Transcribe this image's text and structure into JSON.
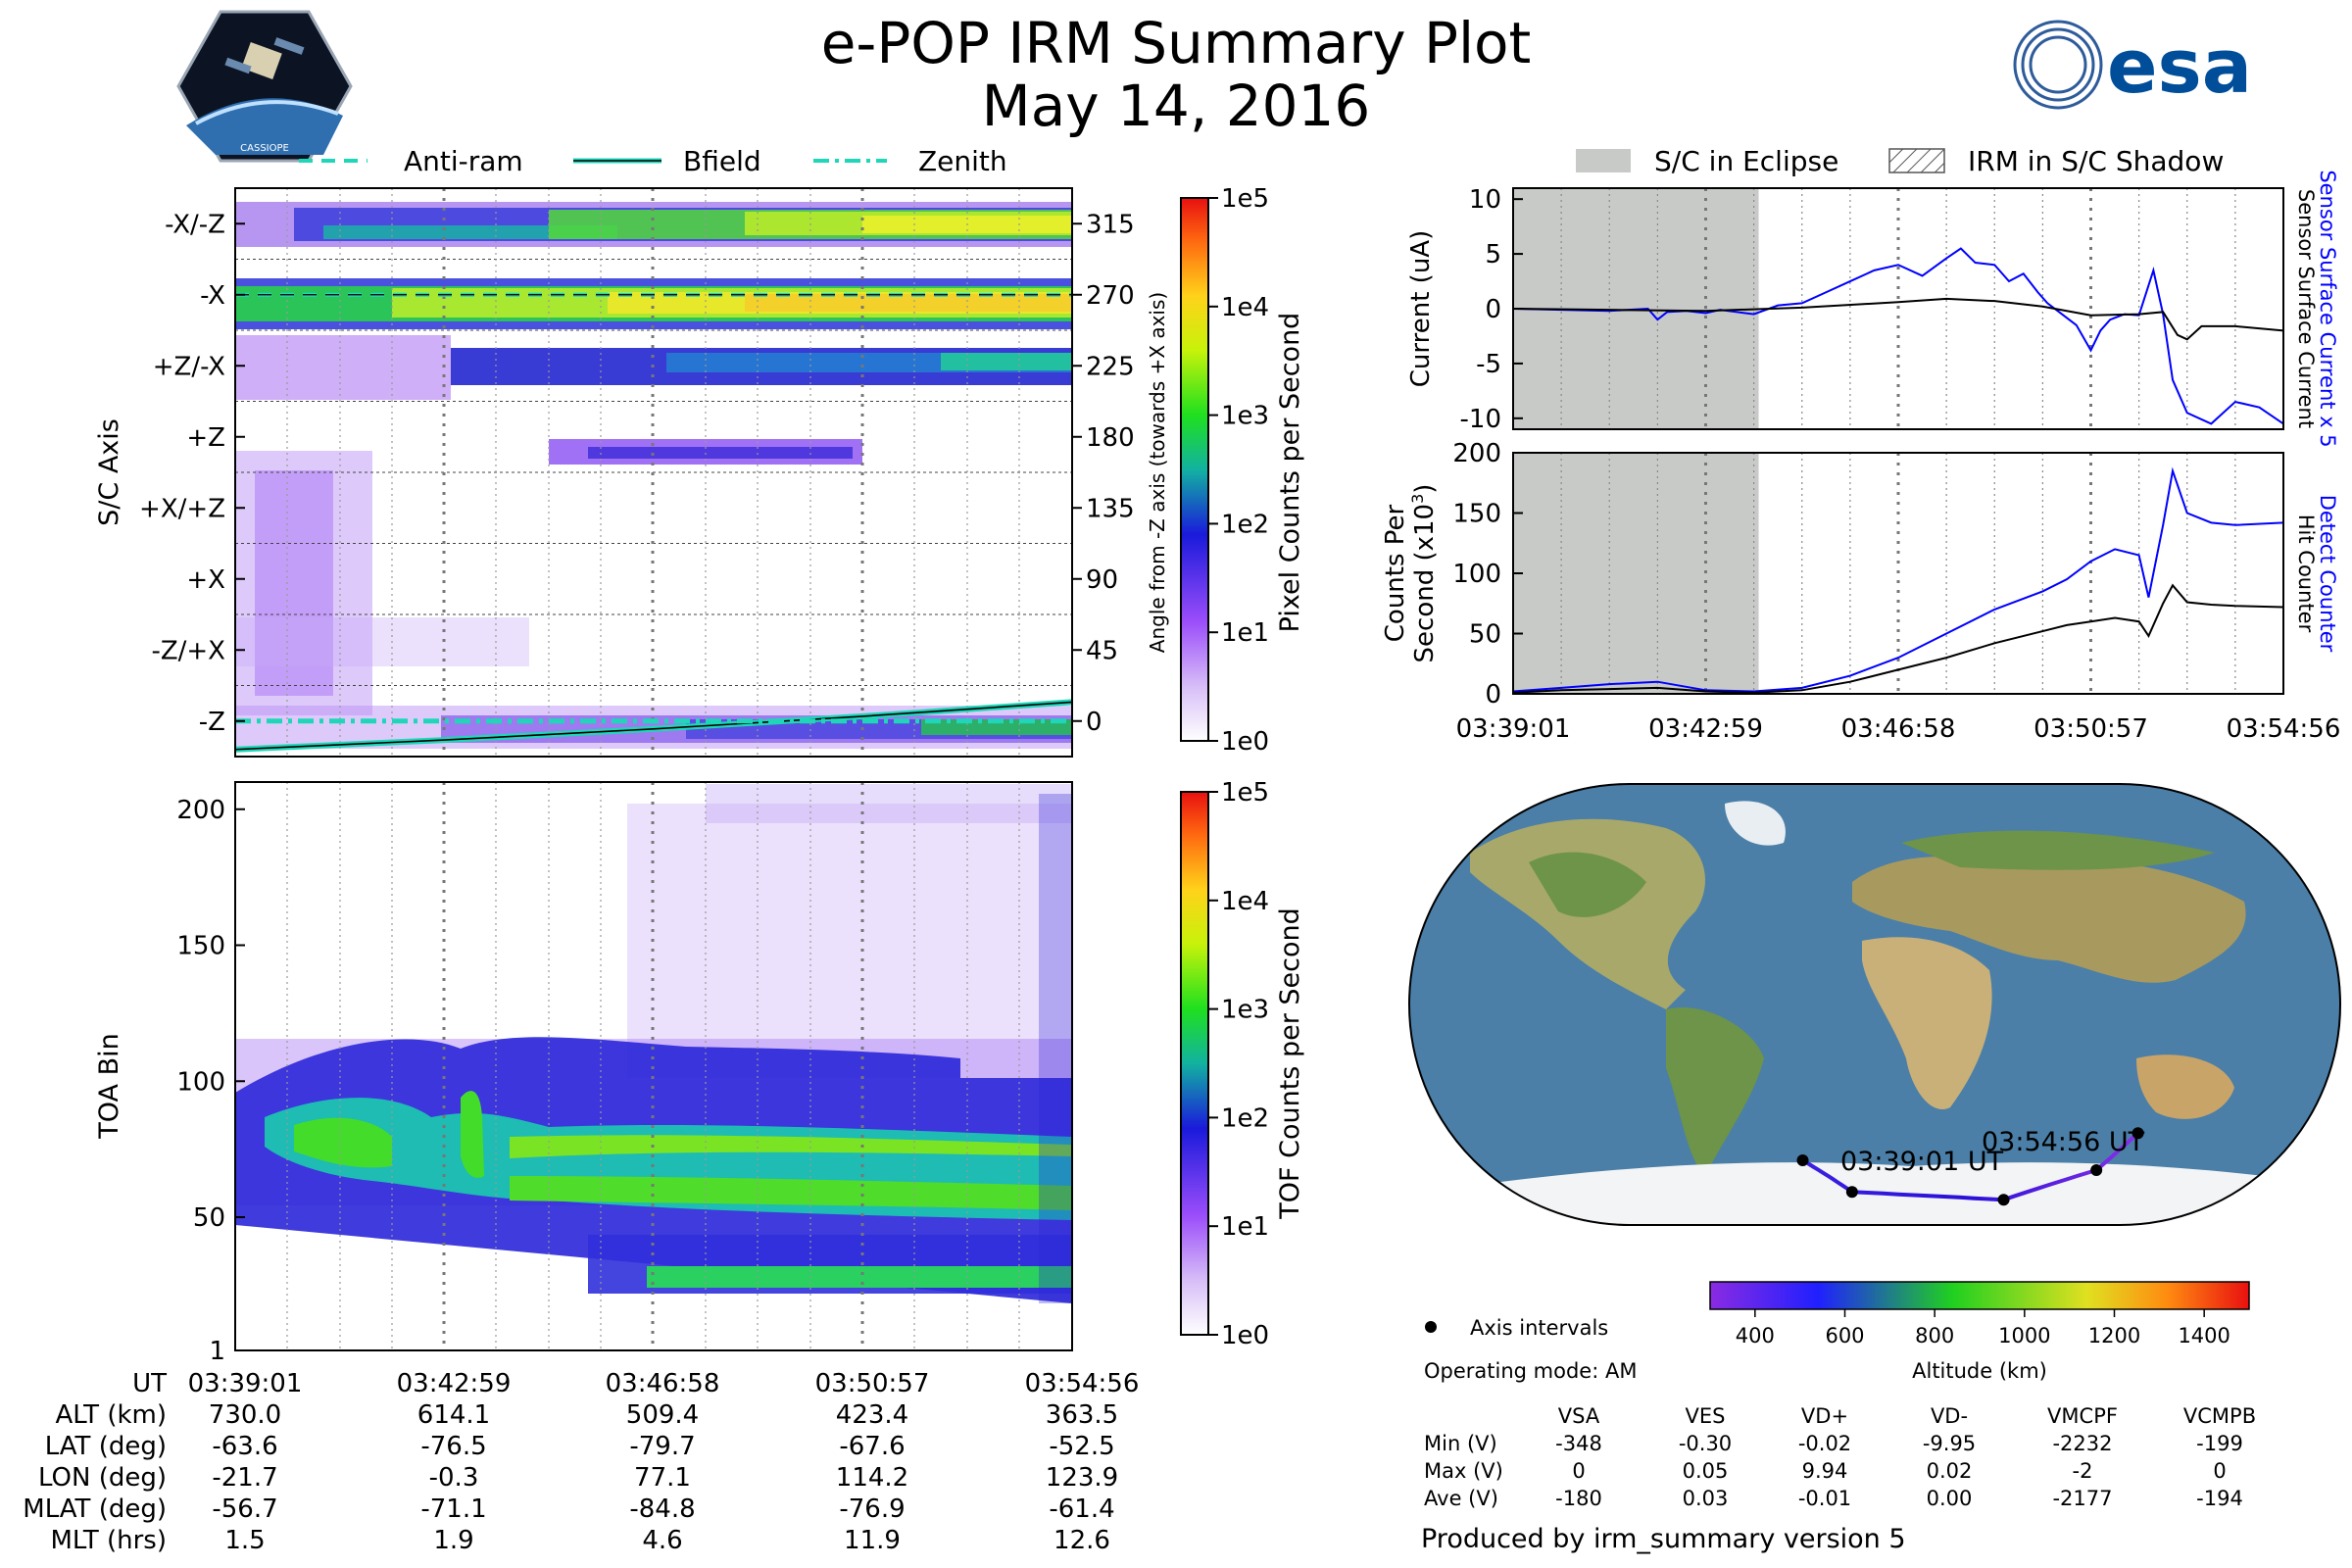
{
  "header": {
    "title": "e-POP IRM Summary Plot",
    "date": "May 14, 2016",
    "logo_left_label": "CASSIOPE",
    "logo_right_label": "esa"
  },
  "legend_top_left": [
    {
      "label": "Anti-ram",
      "style": "dashed"
    },
    {
      "label": "Bfield",
      "style": "solid"
    },
    {
      "label": "Zenith",
      "style": "dashdot"
    }
  ],
  "legend_top_right": [
    {
      "label": "S/C in Eclipse",
      "style": "fill"
    },
    {
      "label": "IRM in S/C Shadow",
      "style": "hatch"
    }
  ],
  "colors": {
    "accent_teal": "#1fd6b8",
    "blue_line": "#0000ff",
    "eclipse_gray": "#c8cac8",
    "ocean": "#4b7fa8"
  },
  "chart_data": [
    {
      "id": "sc_axis",
      "type": "heatmap",
      "ylabel": "S/C Axis",
      "y_tick_labels": [
        "-X/-Z",
        "-X",
        "+Z/-X",
        "+Z",
        "+X/+Z",
        "+X",
        "-Z/+X",
        "-Z"
      ],
      "right_ylabel": "Angle from -Z axis (towards +X axis)",
      "right_ticks": [
        315,
        270,
        225,
        180,
        135,
        90,
        45,
        0
      ],
      "ylim": [
        -22.5,
        337.5
      ],
      "colorbar": {
        "label": "Pixel Counts per Second",
        "ticks": [
          "1e0",
          "1e1",
          "1e2",
          "1e3",
          "1e4",
          "1e5"
        ]
      },
      "overlays": [
        {
          "name": "Anti-ram",
          "angles": [
            270,
            270,
            270,
            270,
            270
          ]
        },
        {
          "name": "Bfield",
          "angles": [
            -18,
            -12,
            -5,
            3,
            12
          ]
        },
        {
          "name": "Zenith",
          "angles": [
            0,
            0,
            0,
            0,
            0
          ]
        }
      ]
    },
    {
      "id": "toa",
      "type": "heatmap",
      "ylabel": "TOA Bin",
      "ylim": [
        1,
        210
      ],
      "y_ticks": [
        1,
        50,
        100,
        150,
        200
      ],
      "colorbar": {
        "label": "TOF Counts per Second",
        "ticks": [
          "1e0",
          "1e1",
          "1e2",
          "1e3",
          "1e4",
          "1e5"
        ]
      }
    },
    {
      "id": "current",
      "type": "line",
      "ylabel": "Current (uA)",
      "ylim": [
        -11,
        11
      ],
      "y_ticks": [
        10,
        5,
        0,
        -5,
        -10
      ],
      "x_tick_labels": [
        "03:39:01",
        "03:42:59",
        "03:46:58",
        "03:50:57",
        "03:54:56"
      ],
      "eclipse_range_min": [
        0,
        5.1
      ],
      "right_labels": [
        "Sensor Surface Current x 5",
        "Sensor Surface Current"
      ],
      "series": [
        {
          "name": "Sensor Surface Current x 5",
          "color": "#0000ff",
          "x": [
            0,
            1,
            2,
            2.8,
            3,
            3.2,
            3.6,
            4,
            4.3,
            5,
            5.5,
            6,
            6.5,
            7,
            7.5,
            8,
            8.5,
            9,
            9.3,
            9.6,
            10,
            10.3,
            10.6,
            10.9,
            11.1,
            11.4,
            11.7,
            12,
            12.2,
            12.4,
            12.7,
            13,
            13.3,
            13.4,
            13.5,
            13.7,
            14,
            14.5,
            15,
            15.5,
            16
          ],
          "values": [
            0,
            -0.1,
            -0.2,
            0,
            -1,
            -0.3,
            -0.2,
            -0.4,
            -0.1,
            -0.5,
            0.3,
            0.5,
            1.5,
            2.5,
            3.5,
            4,
            3,
            4.6,
            5.5,
            4.2,
            4,
            2.5,
            3.2,
            1.5,
            0.5,
            -0.5,
            -1.5,
            -3.8,
            -2,
            -1,
            -0.5,
            -0.6,
            3.5,
            1.5,
            -0.5,
            -6.5,
            -9.5,
            -10.5,
            -8.5,
            -9,
            -10.5
          ]
        },
        {
          "name": "Sensor Surface Current",
          "color": "#000000",
          "x": [
            0,
            2,
            4,
            6,
            8,
            9,
            10,
            11,
            11.5,
            12,
            13,
            13.5,
            13.8,
            14,
            14.3,
            15,
            16
          ],
          "values": [
            0,
            -0.1,
            -0.2,
            0.1,
            0.6,
            0.9,
            0.7,
            0.2,
            -0.2,
            -0.6,
            -0.5,
            -0.3,
            -2.4,
            -2.8,
            -1.6,
            -1.6,
            -2.0
          ]
        }
      ]
    },
    {
      "id": "counts",
      "type": "line",
      "ylabel_lines": [
        "Counts Per",
        "Second (x10",
        "3",
        ")"
      ],
      "ylim": [
        0,
        200
      ],
      "y_ticks": [
        200,
        150,
        100,
        50,
        0
      ],
      "x_tick_labels": [
        "03:39:01",
        "03:42:59",
        "03:46:58",
        "03:50:57",
        "03:54:56"
      ],
      "eclipse_range_min": [
        0,
        5.1
      ],
      "right_labels": [
        "Detect Counter",
        "Hit Counter"
      ],
      "series": [
        {
          "name": "Detect Counter",
          "color": "#0000ff",
          "x": [
            0,
            1,
            2,
            3,
            4,
            5,
            6,
            7,
            8,
            9,
            10,
            11,
            11.5,
            12,
            12.5,
            13,
            13.2,
            13.5,
            13.7,
            14,
            14.5,
            15,
            16
          ],
          "values": [
            2,
            5,
            8,
            10,
            3,
            2,
            5,
            15,
            30,
            50,
            70,
            85,
            95,
            110,
            120,
            115,
            80,
            140,
            185,
            150,
            142,
            140,
            142
          ]
        },
        {
          "name": "Hit Counter",
          "color": "#000000",
          "x": [
            0,
            1,
            2,
            3,
            4,
            5,
            6,
            7,
            8,
            9,
            10,
            11,
            11.5,
            12,
            12.5,
            13,
            13.2,
            13.5,
            13.7,
            14,
            14.5,
            15,
            16
          ],
          "values": [
            1,
            3,
            4,
            5,
            2,
            1,
            3,
            10,
            20,
            30,
            42,
            52,
            57,
            60,
            63,
            60,
            48,
            75,
            90,
            76,
            74,
            73,
            72
          ]
        }
      ]
    },
    {
      "id": "map",
      "type": "scatter",
      "start_label": "03:39:01 UT",
      "end_label": "03:54:56 UT",
      "legend_label": "Axis intervals",
      "operating_mode": "Operating mode: AM",
      "colorbar": {
        "label": "Altitude (km)",
        "ticks": [
          "400",
          "600",
          "800",
          "1000",
          "1200",
          "1400"
        ],
        "range": [
          300,
          1500
        ]
      },
      "track": [
        {
          "lon": -21.7,
          "lat": -63.6,
          "alt": 730.0
        },
        {
          "lon": -0.3,
          "lat": -76.5,
          "alt": 614.1
        },
        {
          "lon": 77.1,
          "lat": -79.7,
          "alt": 509.4
        },
        {
          "lon": 114.2,
          "lat": -67.6,
          "alt": 423.4
        },
        {
          "lon": 123.9,
          "lat": -52.5,
          "alt": 363.5
        }
      ]
    }
  ],
  "ephemeris": {
    "row_labels": [
      "UT",
      "ALT (km)",
      "LAT (deg)",
      "LON (deg)",
      "MLAT (deg)",
      "MLT (hrs)"
    ],
    "columns": [
      [
        "03:39:01",
        "730.0",
        "-63.6",
        "-21.7",
        "-56.7",
        "1.5"
      ],
      [
        "03:42:59",
        "614.1",
        "-76.5",
        "-0.3",
        "-71.1",
        "1.9"
      ],
      [
        "03:46:58",
        "509.4",
        "-79.7",
        "77.1",
        "-84.8",
        "4.6"
      ],
      [
        "03:50:57",
        "423.4",
        "-67.6",
        "114.2",
        "-76.9",
        "11.9"
      ],
      [
        "03:54:56",
        "363.5",
        "-52.5",
        "123.9",
        "-61.4",
        "12.6"
      ]
    ]
  },
  "voltage_table": {
    "headers": [
      "VSA",
      "VES",
      "VD+",
      "VD-",
      "VMCPF",
      "VCMPB"
    ],
    "rows": [
      {
        "label": "Min (V)",
        "values": [
          "-348",
          "-0.30",
          "-0.02",
          "-9.95",
          "-2232",
          "-199"
        ]
      },
      {
        "label": "Max (V)",
        "values": [
          "0",
          "0.05",
          "9.94",
          "0.02",
          "-2",
          "0"
        ]
      },
      {
        "label": "Ave (V)",
        "values": [
          "-180",
          "0.03",
          "-0.01",
          "0.00",
          "-2177",
          "-194"
        ]
      }
    ]
  },
  "footer": "Produced by irm_summary version 5"
}
